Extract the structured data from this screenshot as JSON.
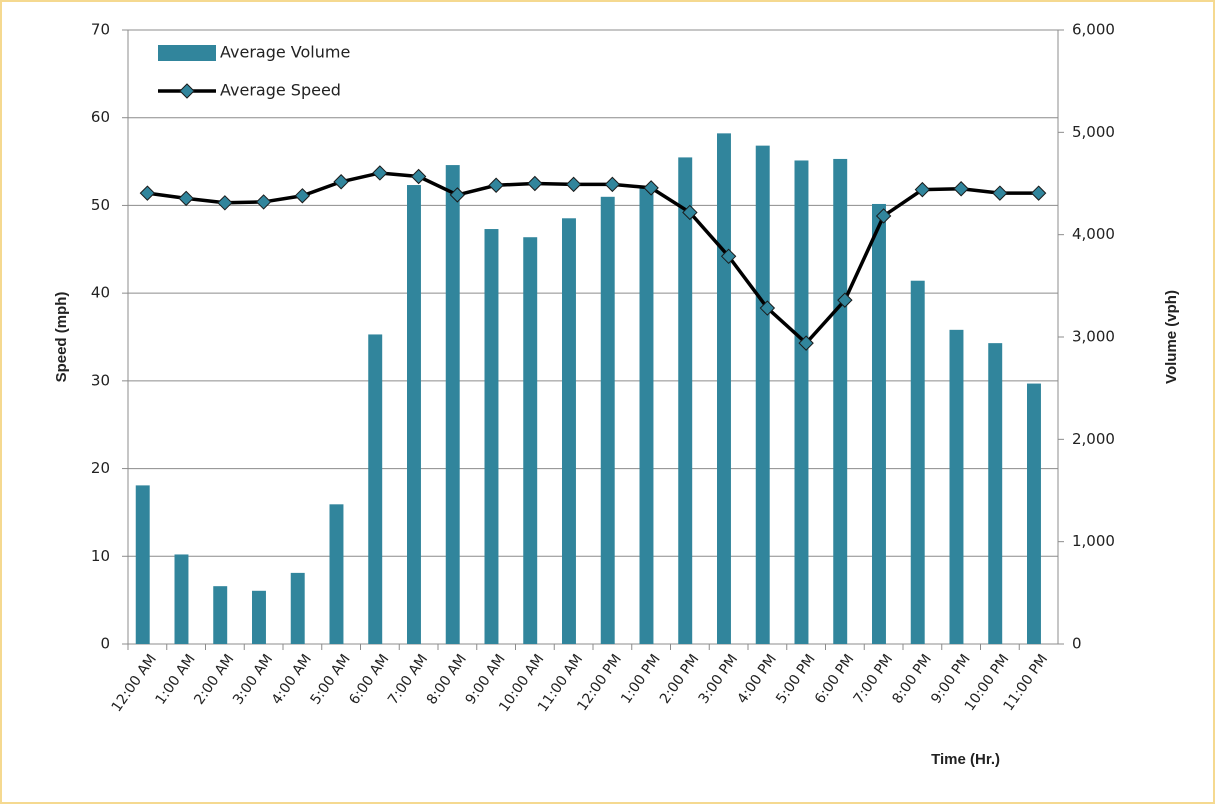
{
  "chart_data": {
    "type": "bar_line",
    "x_label": "Time (Hr.)",
    "y_label": "Speed (mph)",
    "y2_label": "Volume (vph)",
    "categories": [
      "12:00 AM",
      "1:00 AM",
      "2:00 AM",
      "3:00 AM",
      "4:00 AM",
      "5:00 AM",
      "6:00 AM",
      "7:00 AM",
      "8:00 AM",
      "9:00 AM",
      "10:00 AM",
      "11:00 AM",
      "12:00 PM",
      "1:00 PM",
      "2:00 PM",
      "3:00 PM",
      "4:00 PM",
      "5:00 PM",
      "6:00 PM",
      "7:00 PM",
      "8:00 PM",
      "9:00 PM",
      "10:00 PM",
      "11:00 PM"
    ],
    "series": [
      {
        "name": "Average Volume",
        "type": "bar",
        "axis": "y2",
        "color": "#31859c",
        "values": [
          1550,
          875,
          565,
          520,
          695,
          1365,
          3025,
          4485,
          4680,
          4055,
          3975,
          4160,
          4370,
          4480,
          4755,
          4990,
          4870,
          4725,
          4740,
          4300,
          3550,
          3070,
          2940,
          2545
        ]
      },
      {
        "name": "Average Speed",
        "type": "line",
        "axis": "y",
        "color": "#000000",
        "marker_color": "#31859c",
        "values": [
          51.4,
          50.8,
          50.3,
          50.4,
          51.1,
          52.7,
          53.7,
          53.3,
          51.2,
          52.3,
          52.5,
          52.4,
          52.4,
          52.0,
          49.2,
          44.2,
          38.3,
          34.3,
          39.2,
          48.8,
          51.8,
          51.9,
          51.4,
          51.4
        ]
      }
    ],
    "ylim": [
      0,
      70
    ],
    "yticks": [
      0,
      10,
      20,
      30,
      40,
      50,
      60,
      70
    ],
    "y2lim": [
      0,
      6000
    ],
    "y2ticks": [
      0,
      {
        "value": 1000,
        "label": "1,000"
      },
      {
        "value": 2000,
        "label": "2,000"
      },
      {
        "value": 3000,
        "label": "3,000"
      },
      {
        "value": 4000,
        "label": "4,000"
      },
      {
        "value": 5000,
        "label": "5,000"
      },
      {
        "value": 6000,
        "label": "6,000"
      }
    ],
    "grid": true,
    "legend": "upper-left"
  }
}
